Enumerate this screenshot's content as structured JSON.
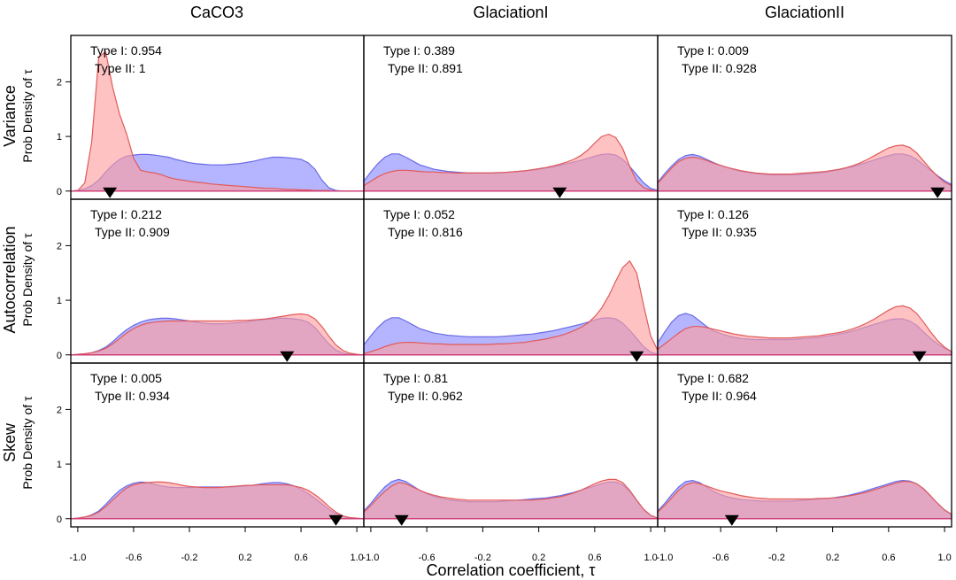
{
  "figure": {
    "col_titles": [
      "CaCO3",
      "GlaciationI",
      "GlaciationII"
    ],
    "row_titles": [
      "Variance",
      "Autocorrelation",
      "Skew"
    ],
    "ylabel": "Prob Density of τ",
    "xlabel": "Correlation coefficient,  τ"
  },
  "chart_data": {
    "type": "area",
    "xlim": [
      -1.05,
      1.05
    ],
    "ylim": [
      -0.15,
      2.85
    ],
    "x_ticks": [
      -1.0,
      -0.6,
      -0.2,
      0.2,
      0.6,
      1.0
    ],
    "x_tick_labels": [
      "-1.0",
      "-0.6",
      "-0.2",
      "0.2",
      "0.6",
      "1.0"
    ],
    "y_ticks": [
      0,
      1,
      2
    ],
    "y_tick_labels": [
      "0",
      "1",
      "2"
    ],
    "grid": false,
    "colors": {
      "red_fill": "#ff9c9c",
      "red_line": "#e05a5a",
      "blue_fill": "#9c9cff",
      "blue_line": "#6a6ae6"
    },
    "series_names": [],
    "x": [
      -1.05,
      -1.0,
      -0.95,
      -0.9,
      -0.85,
      -0.8,
      -0.75,
      -0.7,
      -0.65,
      -0.6,
      -0.55,
      -0.5,
      -0.45,
      -0.4,
      -0.35,
      -0.3,
      -0.25,
      -0.2,
      -0.15,
      -0.1,
      -0.05,
      0.0,
      0.05,
      0.1,
      0.15,
      0.2,
      0.25,
      0.3,
      0.35,
      0.4,
      0.45,
      0.5,
      0.55,
      0.6,
      0.65,
      0.7,
      0.75,
      0.8,
      0.85,
      0.9,
      0.95,
      1.0,
      1.05
    ],
    "panels": [
      {
        "row": "Variance",
        "col": "CaCO3",
        "type1": "Type I: 0.954",
        "type2": "Type II: 1",
        "marker_x": -0.77,
        "red": [
          0,
          0.01,
          0.15,
          0.9,
          2.45,
          2.55,
          1.9,
          1.4,
          1.05,
          0.6,
          0.38,
          0.35,
          0.33,
          0.3,
          0.25,
          0.22,
          0.2,
          0.18,
          0.16,
          0.15,
          0.13,
          0.12,
          0.11,
          0.1,
          0.09,
          0.08,
          0.07,
          0.06,
          0.05,
          0.05,
          0.04,
          0.03,
          0.03,
          0.02,
          0.02,
          0.01,
          0.01,
          0.01,
          0.0,
          0,
          0,
          0,
          0
        ],
        "blue": [
          0,
          0.01,
          0.04,
          0.1,
          0.2,
          0.35,
          0.48,
          0.58,
          0.64,
          0.66,
          0.67,
          0.67,
          0.66,
          0.64,
          0.62,
          0.58,
          0.55,
          0.52,
          0.5,
          0.49,
          0.48,
          0.48,
          0.48,
          0.49,
          0.5,
          0.52,
          0.54,
          0.57,
          0.6,
          0.62,
          0.62,
          0.61,
          0.6,
          0.58,
          0.52,
          0.4,
          0.2,
          0.06,
          0.01,
          0,
          0,
          0,
          0
        ]
      },
      {
        "row": "Variance",
        "col": "GlaciationI",
        "type1": "Type I: 0.389",
        "type2": "Type II: 0.891",
        "marker_x": 0.35,
        "red": [
          0.1,
          0.18,
          0.26,
          0.32,
          0.36,
          0.38,
          0.38,
          0.37,
          0.36,
          0.35,
          0.35,
          0.34,
          0.34,
          0.33,
          0.33,
          0.33,
          0.33,
          0.33,
          0.33,
          0.34,
          0.34,
          0.35,
          0.36,
          0.37,
          0.39,
          0.41,
          0.43,
          0.46,
          0.49,
          0.53,
          0.58,
          0.65,
          0.75,
          0.88,
          1.0,
          1.04,
          0.98,
          0.78,
          0.45,
          0.18,
          0.06,
          0.02,
          0
        ],
        "blue": [
          0.18,
          0.35,
          0.5,
          0.62,
          0.68,
          0.68,
          0.62,
          0.55,
          0.48,
          0.44,
          0.4,
          0.38,
          0.36,
          0.35,
          0.34,
          0.33,
          0.33,
          0.33,
          0.33,
          0.33,
          0.34,
          0.35,
          0.36,
          0.37,
          0.38,
          0.4,
          0.42,
          0.44,
          0.47,
          0.5,
          0.53,
          0.56,
          0.6,
          0.64,
          0.67,
          0.68,
          0.66,
          0.58,
          0.45,
          0.3,
          0.15,
          0.05,
          0.01
        ]
      },
      {
        "row": "Variance",
        "col": "GlaciationII",
        "type1": "Type I: 0.009",
        "type2": "Type II: 0.928",
        "marker_x": 0.95,
        "red": [
          0.14,
          0.28,
          0.42,
          0.54,
          0.6,
          0.62,
          0.6,
          0.56,
          0.51,
          0.47,
          0.43,
          0.4,
          0.37,
          0.35,
          0.33,
          0.32,
          0.31,
          0.31,
          0.31,
          0.31,
          0.32,
          0.33,
          0.34,
          0.35,
          0.36,
          0.38,
          0.4,
          0.43,
          0.47,
          0.52,
          0.58,
          0.65,
          0.72,
          0.79,
          0.83,
          0.84,
          0.8,
          0.7,
          0.55,
          0.4,
          0.27,
          0.16,
          0.1
        ],
        "blue": [
          0.16,
          0.32,
          0.46,
          0.58,
          0.65,
          0.67,
          0.64,
          0.58,
          0.52,
          0.47,
          0.43,
          0.39,
          0.36,
          0.34,
          0.32,
          0.31,
          0.3,
          0.3,
          0.3,
          0.3,
          0.3,
          0.31,
          0.32,
          0.33,
          0.35,
          0.37,
          0.39,
          0.42,
          0.45,
          0.49,
          0.53,
          0.57,
          0.61,
          0.65,
          0.68,
          0.68,
          0.65,
          0.58,
          0.48,
          0.38,
          0.28,
          0.19,
          0.12
        ]
      },
      {
        "row": "Autocorrelation",
        "col": "CaCO3",
        "type1": "Type I: 0.212",
        "type2": "Type II: 0.909",
        "marker_x": 0.5,
        "red": [
          0,
          0.01,
          0.02,
          0.04,
          0.07,
          0.12,
          0.2,
          0.3,
          0.4,
          0.48,
          0.54,
          0.58,
          0.6,
          0.61,
          0.62,
          0.62,
          0.62,
          0.62,
          0.62,
          0.62,
          0.62,
          0.62,
          0.62,
          0.62,
          0.63,
          0.63,
          0.64,
          0.65,
          0.66,
          0.68,
          0.7,
          0.72,
          0.74,
          0.75,
          0.73,
          0.66,
          0.52,
          0.34,
          0.18,
          0.08,
          0.03,
          0.01,
          0
        ],
        "blue": [
          0,
          0.01,
          0.02,
          0.04,
          0.08,
          0.14,
          0.24,
          0.36,
          0.46,
          0.54,
          0.6,
          0.64,
          0.66,
          0.67,
          0.67,
          0.66,
          0.64,
          0.62,
          0.6,
          0.58,
          0.57,
          0.57,
          0.57,
          0.58,
          0.59,
          0.6,
          0.62,
          0.64,
          0.65,
          0.66,
          0.67,
          0.67,
          0.66,
          0.64,
          0.6,
          0.5,
          0.35,
          0.2,
          0.09,
          0.03,
          0.01,
          0,
          0
        ]
      },
      {
        "row": "Autocorrelation",
        "col": "GlaciationI",
        "type1": "Type I: 0.052",
        "type2": "Type II: 0.816",
        "marker_x": 0.9,
        "red": [
          0.02,
          0.06,
          0.1,
          0.15,
          0.19,
          0.22,
          0.23,
          0.23,
          0.22,
          0.21,
          0.2,
          0.2,
          0.19,
          0.19,
          0.19,
          0.19,
          0.19,
          0.19,
          0.19,
          0.2,
          0.2,
          0.21,
          0.22,
          0.23,
          0.25,
          0.27,
          0.29,
          0.32,
          0.35,
          0.39,
          0.44,
          0.5,
          0.58,
          0.7,
          0.86,
          1.08,
          1.35,
          1.6,
          1.72,
          1.5,
          0.9,
          0.35,
          0.08
        ],
        "blue": [
          0.18,
          0.35,
          0.5,
          0.62,
          0.68,
          0.68,
          0.62,
          0.55,
          0.48,
          0.44,
          0.4,
          0.38,
          0.36,
          0.35,
          0.34,
          0.33,
          0.33,
          0.33,
          0.33,
          0.33,
          0.34,
          0.35,
          0.36,
          0.37,
          0.38,
          0.4,
          0.42,
          0.44,
          0.47,
          0.5,
          0.53,
          0.56,
          0.6,
          0.64,
          0.67,
          0.68,
          0.66,
          0.58,
          0.45,
          0.3,
          0.15,
          0.05,
          0.01
        ]
      },
      {
        "row": "Autocorrelation",
        "col": "GlaciationII",
        "type1": "Type I: 0.126",
        "type2": "Type II: 0.935",
        "marker_x": 0.82,
        "red": [
          0.1,
          0.2,
          0.3,
          0.4,
          0.48,
          0.52,
          0.52,
          0.5,
          0.47,
          0.44,
          0.41,
          0.38,
          0.36,
          0.34,
          0.33,
          0.32,
          0.31,
          0.31,
          0.31,
          0.31,
          0.32,
          0.33,
          0.34,
          0.35,
          0.37,
          0.39,
          0.41,
          0.44,
          0.48,
          0.53,
          0.59,
          0.66,
          0.74,
          0.82,
          0.88,
          0.9,
          0.86,
          0.76,
          0.6,
          0.42,
          0.26,
          0.14,
          0.06
        ],
        "blue": [
          0.22,
          0.42,
          0.6,
          0.72,
          0.76,
          0.72,
          0.62,
          0.52,
          0.44,
          0.39,
          0.35,
          0.32,
          0.3,
          0.29,
          0.28,
          0.28,
          0.28,
          0.28,
          0.28,
          0.28,
          0.29,
          0.3,
          0.31,
          0.32,
          0.34,
          0.36,
          0.38,
          0.41,
          0.44,
          0.48,
          0.52,
          0.56,
          0.6,
          0.64,
          0.66,
          0.66,
          0.62,
          0.54,
          0.42,
          0.3,
          0.2,
          0.12,
          0.06
        ]
      },
      {
        "row": "Skew",
        "col": "CaCO3",
        "type1": "Type I: 0.005",
        "type2": "Type II: 0.934",
        "marker_x": 0.85,
        "red": [
          0,
          0.01,
          0.03,
          0.06,
          0.12,
          0.22,
          0.34,
          0.46,
          0.56,
          0.62,
          0.65,
          0.66,
          0.67,
          0.67,
          0.66,
          0.64,
          0.61,
          0.59,
          0.58,
          0.57,
          0.57,
          0.57,
          0.58,
          0.59,
          0.6,
          0.61,
          0.61,
          0.62,
          0.62,
          0.62,
          0.62,
          0.62,
          0.6,
          0.57,
          0.52,
          0.44,
          0.34,
          0.22,
          0.12,
          0.05,
          0.02,
          0.01,
          0
        ],
        "blue": [
          0,
          0.01,
          0.03,
          0.07,
          0.14,
          0.26,
          0.4,
          0.52,
          0.6,
          0.65,
          0.67,
          0.66,
          0.63,
          0.6,
          0.58,
          0.57,
          0.57,
          0.57,
          0.58,
          0.58,
          0.58,
          0.58,
          0.58,
          0.58,
          0.59,
          0.6,
          0.61,
          0.63,
          0.65,
          0.66,
          0.66,
          0.64,
          0.6,
          0.54,
          0.46,
          0.37,
          0.27,
          0.17,
          0.09,
          0.04,
          0.01,
          0,
          0
        ]
      },
      {
        "row": "Skew",
        "col": "GlaciationI",
        "type1": "Type I: 0.81",
        "type2": "Type II: 0.962",
        "marker_x": -0.78,
        "red": [
          0.12,
          0.24,
          0.38,
          0.5,
          0.6,
          0.66,
          0.64,
          0.58,
          0.52,
          0.47,
          0.43,
          0.4,
          0.38,
          0.36,
          0.35,
          0.34,
          0.34,
          0.34,
          0.34,
          0.34,
          0.34,
          0.34,
          0.34,
          0.34,
          0.34,
          0.35,
          0.36,
          0.38,
          0.4,
          0.43,
          0.47,
          0.52,
          0.58,
          0.64,
          0.69,
          0.72,
          0.72,
          0.66,
          0.52,
          0.34,
          0.17,
          0.06,
          0.01
        ],
        "blue": [
          0.14,
          0.28,
          0.44,
          0.58,
          0.68,
          0.72,
          0.68,
          0.6,
          0.52,
          0.46,
          0.41,
          0.38,
          0.35,
          0.33,
          0.32,
          0.31,
          0.31,
          0.31,
          0.31,
          0.31,
          0.32,
          0.33,
          0.34,
          0.35,
          0.36,
          0.37,
          0.38,
          0.4,
          0.42,
          0.45,
          0.48,
          0.52,
          0.56,
          0.6,
          0.64,
          0.67,
          0.67,
          0.62,
          0.5,
          0.33,
          0.17,
          0.06,
          0.01
        ]
      },
      {
        "row": "Skew",
        "col": "GlaciationII",
        "type1": "Type I: 0.682",
        "type2": "Type II: 0.964",
        "marker_x": -0.52,
        "red": [
          0.12,
          0.24,
          0.38,
          0.52,
          0.62,
          0.66,
          0.64,
          0.6,
          0.55,
          0.51,
          0.48,
          0.45,
          0.42,
          0.4,
          0.38,
          0.37,
          0.36,
          0.36,
          0.36,
          0.36,
          0.36,
          0.36,
          0.36,
          0.37,
          0.37,
          0.38,
          0.39,
          0.41,
          0.43,
          0.46,
          0.49,
          0.53,
          0.57,
          0.61,
          0.65,
          0.68,
          0.68,
          0.64,
          0.55,
          0.42,
          0.28,
          0.16,
          0.08
        ],
        "blue": [
          0.14,
          0.28,
          0.44,
          0.58,
          0.68,
          0.7,
          0.66,
          0.58,
          0.5,
          0.44,
          0.4,
          0.37,
          0.35,
          0.34,
          0.33,
          0.32,
          0.32,
          0.32,
          0.32,
          0.32,
          0.33,
          0.34,
          0.35,
          0.36,
          0.37,
          0.38,
          0.4,
          0.42,
          0.45,
          0.48,
          0.52,
          0.56,
          0.6,
          0.64,
          0.68,
          0.7,
          0.69,
          0.64,
          0.54,
          0.41,
          0.28,
          0.16,
          0.08
        ]
      }
    ]
  }
}
